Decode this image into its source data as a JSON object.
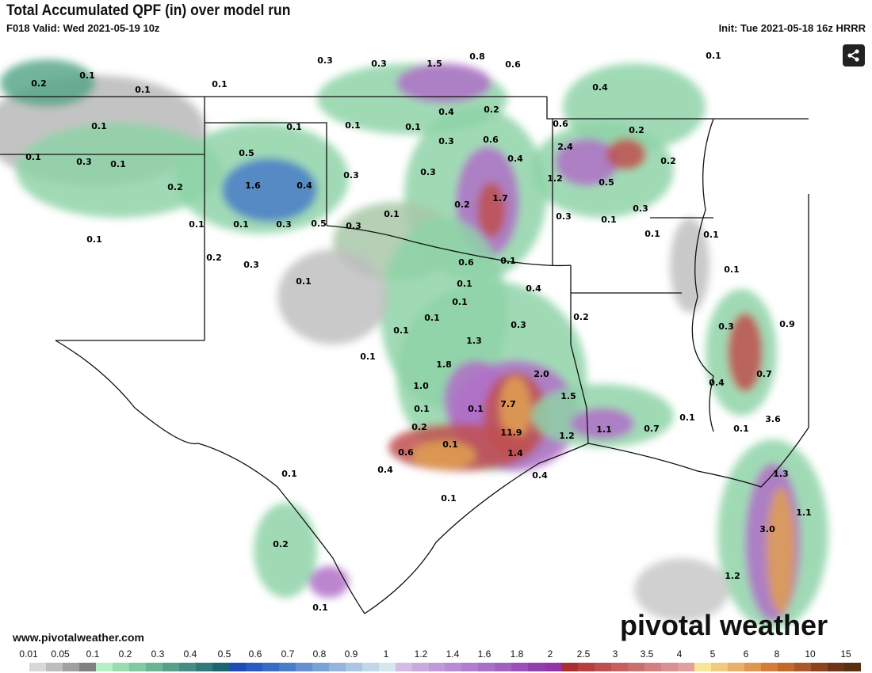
{
  "header": {
    "title": "Total Accumulated QPF (in) over model run",
    "valid": "F018 Valid: Wed 2021-05-19 10z",
    "init": "Init: Tue 2021-05-18 16z HRRR"
  },
  "share_icon": "share-icon",
  "footer_url": "www.pivotalweather.com",
  "logo": "pivotal weather",
  "map_labels": [
    "0.3",
    "0.3",
    "1.5",
    "0.8",
    "0.6",
    "0.1",
    "0.2",
    "0.1",
    "0.1",
    "0.1",
    "0.4",
    "0.4",
    "0.2",
    "0.1",
    "0.1",
    "0.1",
    "0.1",
    "0.6",
    "0.2",
    "0.1",
    "0.3",
    "0.1",
    "0.5",
    "0.3",
    "0.6",
    "2.4",
    "0.4",
    "0.2",
    "0.3",
    "0.3",
    "1.2",
    "0.5",
    "0.2",
    "1.6",
    "0.4",
    "1.7",
    "0.2",
    "0.3",
    "0.1",
    "0.1",
    "0.1",
    "0.3",
    "0.5",
    "0.3",
    "0.1",
    "0.3",
    "0.1",
    "0.1",
    "0.1",
    "0.2",
    "0.3",
    "0.6",
    "0.1",
    "0.1",
    "0.1",
    "0.1",
    "0.4",
    "0.1",
    "0.1",
    "0.2",
    "0.3",
    "0.3",
    "0.9",
    "0.1",
    "1.3",
    "0.1",
    "1.8",
    "2.0",
    "0.7",
    "0.4",
    "1.0",
    "1.5",
    "7.7",
    "0.1",
    "0.1",
    "3.6",
    "0.1",
    "0.2",
    "11.9",
    "1.2",
    "1.1",
    "0.7",
    "0.1",
    "0.1",
    "1.4",
    "0.6",
    "0.4",
    "0.4",
    "0.1",
    "1.3",
    "0.1",
    "1.1",
    "3.0",
    "0.2",
    "1.2",
    "0.1"
  ],
  "colorbar": {
    "ticks": [
      "0.01",
      "0.05",
      "0.1",
      "0.2",
      "0.3",
      "0.4",
      "0.5",
      "0.6",
      "0.7",
      "0.8",
      "0.9",
      "1",
      "1.2",
      "1.4",
      "1.6",
      "1.8",
      "2",
      "2.5",
      "3",
      "3.5",
      "4",
      "5",
      "6",
      "8",
      "10",
      "15"
    ],
    "colors": [
      "#ffffff",
      "#d8d8d8",
      "#bdbdbd",
      "#a0a0a0",
      "#808080",
      "#b4f0c4",
      "#9adcb0",
      "#82c8a0",
      "#6cb494",
      "#58a08c",
      "#468c84",
      "#32787a",
      "#1e6470",
      "#1e4cb4",
      "#2a5cc0",
      "#3a6cc4",
      "#4a7cc8",
      "#6690d0",
      "#7ca2d4",
      "#94b4dc",
      "#aac6e0",
      "#c0d8e8",
      "#d4e6ee",
      "#d4bce2",
      "#c8aadc",
      "#c09ad8",
      "#b88cd4",
      "#b07ecc",
      "#a870c4",
      "#a062bc",
      "#9a50b6",
      "#9040ac",
      "#9434a8",
      "#a83030",
      "#b44040",
      "#bc5050",
      "#c46060",
      "#c87070",
      "#d08080",
      "#d89090",
      "#e0a0a0",
      "#f6e69a",
      "#eecb80",
      "#e6b06a",
      "#dc9850",
      "#d07e3c",
      "#c06a2c",
      "#a8582a",
      "#8a4420",
      "#6c3418",
      "#583012"
    ]
  }
}
